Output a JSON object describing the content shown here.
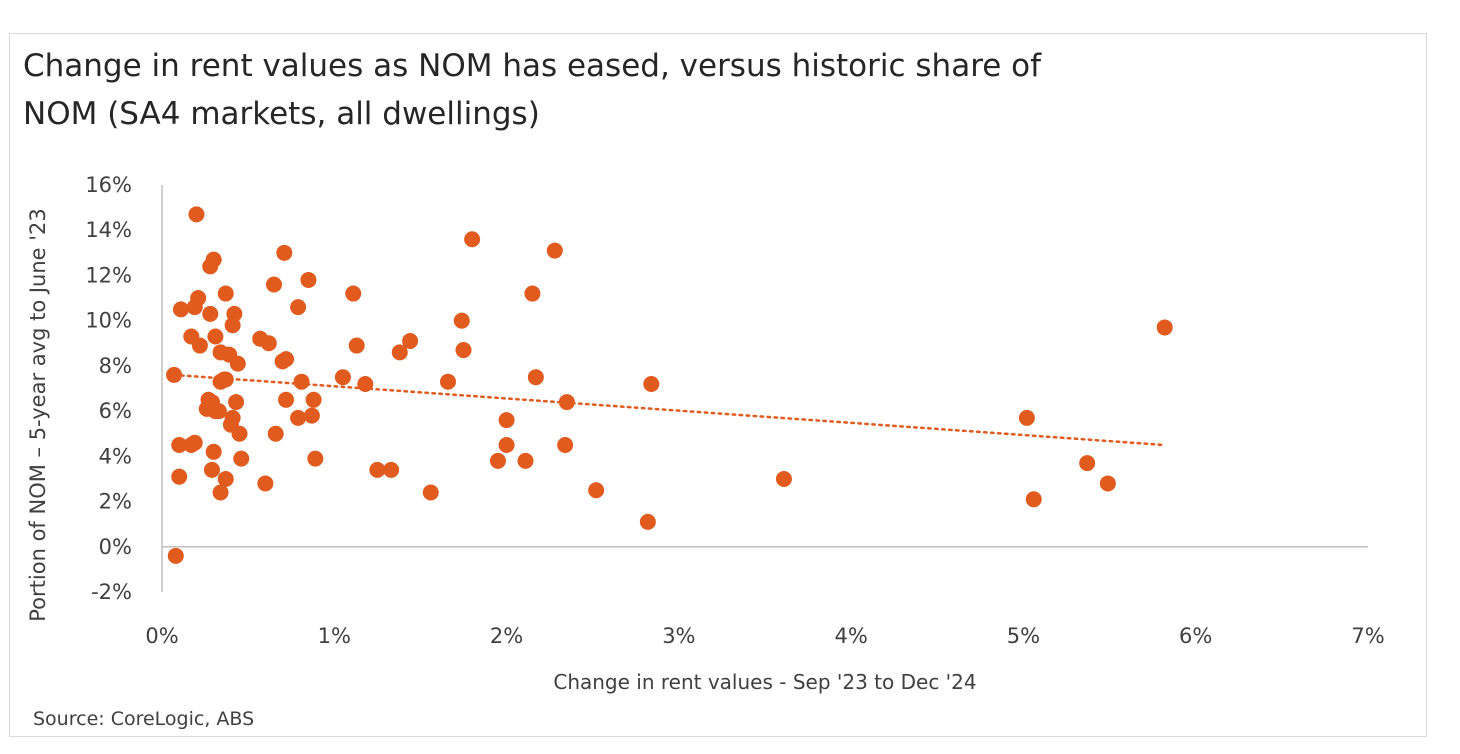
{
  "chart_data": {
    "type": "scatter",
    "title_lines": [
      "Change in rent values as NOM has eased, versus historic share of",
      "NOM (SA4 markets, all dwellings)"
    ],
    "xlabel": "Change in rent values - Sep '23 to Dec '24",
    "ylabel": "Portion of NOM –  5-year avg to June '23",
    "source": "Source: CoreLogic, ABS",
    "xlim": [
      0,
      7
    ],
    "ylim": [
      -2,
      16
    ],
    "x_ticks": [
      0,
      1,
      2,
      3,
      4,
      5,
      6,
      7
    ],
    "y_ticks": [
      -2,
      0,
      2,
      4,
      6,
      8,
      10,
      12,
      14,
      16
    ],
    "x_tick_labels": [
      "0%",
      "1%",
      "2%",
      "3%",
      "4%",
      "5%",
      "6%",
      "7%"
    ],
    "y_tick_labels": [
      "-2%",
      "0%",
      "2%",
      "4%",
      "6%",
      "8%",
      "10%",
      "12%",
      "14%",
      "16%"
    ],
    "trendline": {
      "style": "dotted",
      "x": [
        0.07,
        5.82
      ],
      "y": [
        7.6,
        4.5
      ]
    },
    "colors": {
      "points": "#E15A1E",
      "trendline": "#E15A1E",
      "axis": "#bfbfbf",
      "text": "#404040",
      "title": "#262626"
    },
    "grid": false,
    "legend": "none",
    "series": [
      {
        "points": [
          [
            0.2,
            14.7
          ],
          [
            0.3,
            12.7
          ],
          [
            0.28,
            12.4
          ],
          [
            0.21,
            11.0
          ],
          [
            0.37,
            11.2
          ],
          [
            0.11,
            10.5
          ],
          [
            0.19,
            10.6
          ],
          [
            0.28,
            10.3
          ],
          [
            0.42,
            10.3
          ],
          [
            0.41,
            9.8
          ],
          [
            0.17,
            9.3
          ],
          [
            0.31,
            9.3
          ],
          [
            0.22,
            8.9
          ],
          [
            0.34,
            8.6
          ],
          [
            0.39,
            8.5
          ],
          [
            0.44,
            8.1
          ],
          [
            0.07,
            7.6
          ],
          [
            0.37,
            7.4
          ],
          [
            0.34,
            7.3
          ],
          [
            0.36,
            7.4
          ],
          [
            0.27,
            6.5
          ],
          [
            0.29,
            6.4
          ],
          [
            0.26,
            6.1
          ],
          [
            0.31,
            6.0
          ],
          [
            0.33,
            6.0
          ],
          [
            0.43,
            6.4
          ],
          [
            0.41,
            5.7
          ],
          [
            0.4,
            5.4
          ],
          [
            0.45,
            5.0
          ],
          [
            0.1,
            4.5
          ],
          [
            0.17,
            4.5
          ],
          [
            0.19,
            4.6
          ],
          [
            0.3,
            4.2
          ],
          [
            0.46,
            3.9
          ],
          [
            0.1,
            3.1
          ],
          [
            0.29,
            3.4
          ],
          [
            0.37,
            3.0
          ],
          [
            0.34,
            2.4
          ],
          [
            0.08,
            -0.4
          ],
          [
            0.65,
            11.6
          ],
          [
            0.71,
            13.0
          ],
          [
            0.85,
            11.8
          ],
          [
            0.79,
            10.6
          ],
          [
            0.57,
            9.2
          ],
          [
            0.62,
            9.0
          ],
          [
            0.72,
            8.3
          ],
          [
            0.7,
            8.2
          ],
          [
            0.81,
            7.3
          ],
          [
            0.72,
            6.5
          ],
          [
            0.88,
            6.5
          ],
          [
            0.79,
            5.7
          ],
          [
            0.87,
            5.8
          ],
          [
            0.66,
            5.0
          ],
          [
            0.89,
            3.9
          ],
          [
            0.6,
            2.8
          ],
          [
            1.11,
            11.2
          ],
          [
            1.13,
            8.9
          ],
          [
            1.05,
            7.5
          ],
          [
            1.18,
            7.2
          ],
          [
            1.38,
            8.6
          ],
          [
            1.44,
            9.1
          ],
          [
            1.25,
            3.4
          ],
          [
            1.33,
            3.4
          ],
          [
            1.56,
            2.4
          ],
          [
            1.8,
            13.6
          ],
          [
            1.74,
            10.0
          ],
          [
            1.75,
            8.7
          ],
          [
            1.66,
            7.3
          ],
          [
            2.28,
            13.1
          ],
          [
            2.15,
            11.2
          ],
          [
            2.17,
            7.5
          ],
          [
            2.35,
            6.4
          ],
          [
            2.0,
            5.6
          ],
          [
            2.0,
            4.5
          ],
          [
            1.95,
            3.8
          ],
          [
            2.11,
            3.8
          ],
          [
            2.34,
            4.5
          ],
          [
            2.52,
            2.5
          ],
          [
            2.84,
            7.2
          ],
          [
            2.82,
            1.1
          ],
          [
            3.61,
            3.0
          ],
          [
            5.02,
            5.7
          ],
          [
            5.06,
            2.1
          ],
          [
            5.37,
            3.7
          ],
          [
            5.49,
            2.8
          ],
          [
            5.82,
            9.7
          ]
        ]
      }
    ]
  }
}
